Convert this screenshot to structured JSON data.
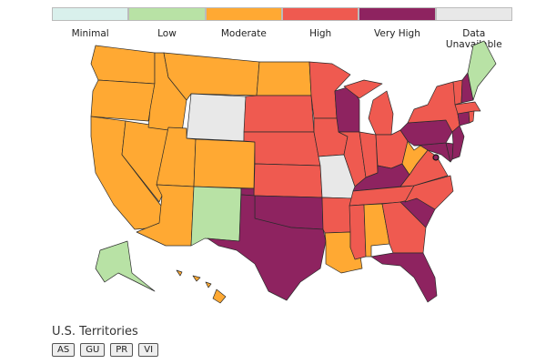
{
  "legend": [
    {
      "label": "Minimal",
      "color": "#d9f0ec"
    },
    {
      "label": "Low",
      "color": "#b8e2a5"
    },
    {
      "label": "Moderate",
      "color": "#ffa933"
    },
    {
      "label": "High",
      "color": "#ef5a50"
    },
    {
      "label": "Very High",
      "color": "#8e2360"
    },
    {
      "label": "Data Unavailable",
      "color": "#e8e8e8"
    }
  ],
  "territories": {
    "title": "U.S. Territories",
    "buttons": [
      "AS",
      "GU",
      "PR",
      "VI"
    ]
  }
}
